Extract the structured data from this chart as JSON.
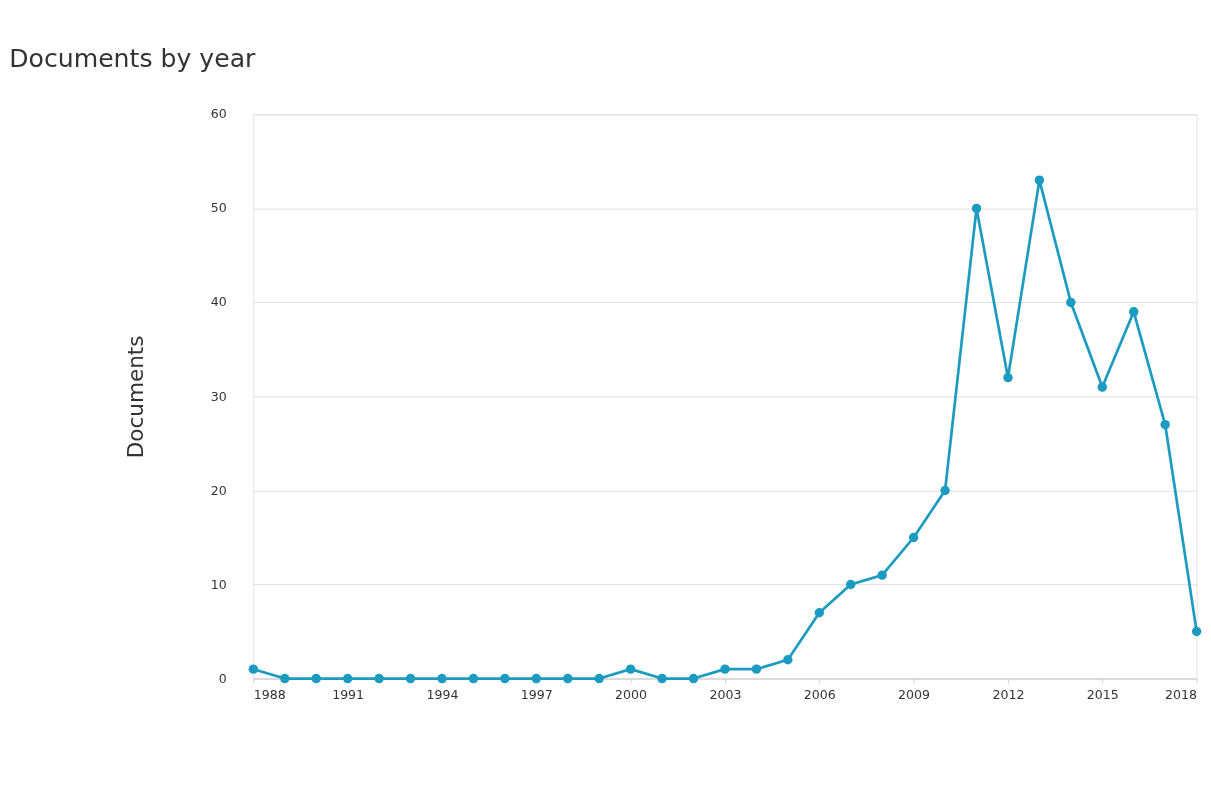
{
  "chart_data": {
    "type": "line",
    "title": "Documents by year",
    "ylabel": "Documents",
    "x": [
      1988,
      1989,
      1990,
      1991,
      1992,
      1993,
      1994,
      1995,
      1996,
      1997,
      1998,
      1999,
      2000,
      2001,
      2002,
      2003,
      2004,
      2005,
      2006,
      2007,
      2008,
      2009,
      2010,
      2011,
      2012,
      2013,
      2014,
      2015,
      2016,
      2017,
      2018
    ],
    "series": [
      {
        "color": "#1a9bbf",
        "values": [
          1,
          0,
          0,
          0,
          0,
          0,
          0,
          0,
          0,
          0,
          0,
          0,
          1,
          0,
          0,
          1,
          1,
          2,
          7,
          10,
          11,
          15,
          20,
          50,
          32,
          53,
          40,
          31,
          39,
          27,
          5
        ]
      }
    ],
    "xlim": [
      1988,
      2018
    ],
    "xticks": [
      1988,
      1991,
      1994,
      1997,
      2000,
      2003,
      2006,
      2009,
      2012,
      2015,
      2018
    ],
    "ylim": [
      0,
      60
    ],
    "yticks": [
      0,
      10,
      20,
      30,
      40,
      50,
      60
    ],
    "grid": "y",
    "marker": "circle",
    "line_style": "solid"
  }
}
